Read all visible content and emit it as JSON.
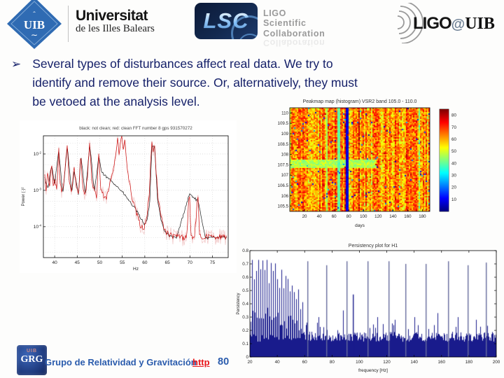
{
  "slide": {
    "bullet_glyph": "➢",
    "bullet_lines": [
      "Several types of disturbances affect real data. We try to",
      "identify and remove their source. Or, alternatively, they must",
      "be vetoed at the analysis level."
    ],
    "text_color": "#152069"
  },
  "header": {
    "uib_logo": {
      "text": "UIB"
    },
    "universitat": {
      "line1": "Universitat",
      "line2": "de les Illes Balears"
    },
    "lsc_logo": {
      "text": "LSC"
    },
    "lsc_caption": {
      "line1": "LIGO",
      "line2": "Scientific",
      "line3": "Collaboration"
    },
    "ligo_uib": {
      "ligo": "LIGO",
      "at": "@",
      "uib": "UIB"
    }
  },
  "footer": {
    "logo_top": "UIB",
    "logo_text": "GRG",
    "group_name": "Grupo de Relatividad y Gravitación",
    "link_label": "http",
    "page_number": "80"
  },
  "chart_data": [
    {
      "type": "line",
      "title": "black: not clean; red: clean FFT number 8 gps 931570272",
      "xlabel": "Hz",
      "ylabel": "Power (·)²",
      "x_ticks": [
        40,
        45,
        50,
        55,
        60,
        65,
        70,
        75
      ],
      "x_range": [
        37.5,
        78.5
      ],
      "y_scale": "log",
      "y_tick_exps": [
        -2,
        -3,
        -4
      ],
      "y_range_exp": [
        -4.85,
        -1.5
      ],
      "grid": true,
      "series": [
        {
          "name": "black: not clean",
          "color": "#1c1c1c",
          "noise": 0.035,
          "points": [
            [
              37.8,
              0.0022
            ],
            [
              38.5,
              0.0011
            ],
            [
              39.3,
              0.005
            ],
            [
              40.0,
              0.0014
            ],
            [
              40.9,
              0.013
            ],
            [
              41.8,
              0.00075
            ],
            [
              42.8,
              0.017
            ],
            [
              43.8,
              0.0008
            ],
            [
              44.3,
              0.0035
            ],
            [
              45.3,
              0.0007
            ],
            [
              45.8,
              0.01
            ],
            [
              46.8,
              0.00075
            ],
            [
              47.8,
              0.019
            ],
            [
              48.8,
              0.00085
            ],
            [
              49.8,
              0.009
            ],
            [
              50.4,
              0.0032
            ],
            [
              51.0,
              0.0026
            ],
            [
              51.7,
              0.0022
            ],
            [
              52.4,
              0.0019
            ],
            [
              53.1,
              0.0016
            ],
            [
              53.8,
              0.0013
            ],
            [
              54.5,
              0.00105
            ],
            [
              55.2,
              0.00085
            ],
            [
              55.9,
              0.00065
            ],
            [
              56.6,
              0.0005
            ],
            [
              57.3,
              0.00038
            ],
            [
              58.0,
              0.00029
            ],
            [
              58.7,
              0.00021
            ],
            [
              59.4,
              0.00015
            ],
            [
              60.0,
              0.000115
            ],
            [
              60.6,
              0.00016
            ],
            [
              61.1,
              0.0005
            ],
            [
              61.6,
              0.019
            ],
            [
              62.2,
              0.015
            ],
            [
              62.8,
              0.0006
            ],
            [
              63.6,
              0.00015
            ],
            [
              64.4,
              7.5e-05
            ],
            [
              65.5,
              5.5e-05
            ],
            [
              67.0,
              4.8e-05
            ],
            [
              69.9,
              0.0008
            ],
            [
              71.8,
              0.0005
            ],
            [
              73.5,
              4.8e-05
            ],
            [
              76.0,
              5.2e-05
            ],
            [
              78.2,
              5e-05
            ]
          ]
        },
        {
          "name": "red: clean",
          "color": "#cc1212",
          "noise": 0.08,
          "points": [
            [
              37.8,
              0.0025
            ],
            [
              38.1,
              0.001
            ],
            [
              38.5,
              0.0035
            ],
            [
              38.9,
              0.0012
            ],
            [
              39.3,
              0.007
            ],
            [
              39.6,
              0.0011
            ],
            [
              40.0,
              0.0018
            ],
            [
              40.5,
              0.0009
            ],
            [
              40.9,
              0.016
            ],
            [
              41.2,
              0.0014
            ],
            [
              41.8,
              0.00085
            ],
            [
              42.3,
              0.004
            ],
            [
              42.8,
              0.021
            ],
            [
              43.2,
              0.0018
            ],
            [
              43.8,
              0.0009
            ],
            [
              44.3,
              0.005
            ],
            [
              44.8,
              0.0011
            ],
            [
              45.3,
              0.00075
            ],
            [
              45.8,
              0.013
            ],
            [
              46.2,
              0.0013
            ],
            [
              46.8,
              0.0008
            ],
            [
              47.3,
              0.0026
            ],
            [
              47.8,
              0.023
            ],
            [
              48.2,
              0.0017
            ],
            [
              48.8,
              0.0009
            ],
            [
              49.3,
              0.00065
            ],
            [
              49.8,
              0.012
            ],
            [
              50.2,
              0.0011
            ],
            [
              50.8,
              0.0007
            ],
            [
              51.3,
              0.00055
            ],
            [
              51.9,
              0.0009
            ],
            [
              52.4,
              0.0018
            ],
            [
              52.9,
              0.0035
            ],
            [
              53.3,
              0.007
            ],
            [
              53.7,
              0.014
            ],
            [
              54.0,
              0.029
            ],
            [
              54.3,
              0.009
            ],
            [
              54.6,
              0.024
            ],
            [
              54.9,
              0.031
            ],
            [
              55.2,
              0.011
            ],
            [
              55.5,
              0.027
            ],
            [
              55.9,
              0.007
            ],
            [
              56.3,
              0.0026
            ],
            [
              56.7,
              0.0013
            ],
            [
              57.1,
              0.0007
            ],
            [
              57.6,
              0.00038
            ],
            [
              58.1,
              0.00024
            ],
            [
              58.6,
              0.00015
            ],
            [
              59.1,
              0.000105
            ],
            [
              59.6,
              9e-05
            ],
            [
              60.1,
              0.00011
            ],
            [
              60.6,
              0.00022
            ],
            [
              61.0,
              0.0009
            ],
            [
              61.3,
              0.006
            ],
            [
              61.6,
              0.024
            ],
            [
              61.9,
              0.012
            ],
            [
              62.2,
              0.02
            ],
            [
              62.5,
              0.0035
            ],
            [
              62.9,
              0.0007
            ],
            [
              63.4,
              0.00026
            ],
            [
              63.9,
              0.00013
            ],
            [
              64.4,
              8.5e-05
            ],
            [
              65.0,
              6.5e-05
            ],
            [
              65.8,
              5.8e-05
            ],
            [
              66.6,
              5.2e-05
            ],
            [
              67.5,
              5.6e-05
            ],
            [
              68.4,
              5e-05
            ],
            [
              69.3,
              5.4e-05
            ],
            [
              69.9,
              0.0011
            ],
            [
              70.2,
              5.6e-05
            ],
            [
              71.0,
              5e-05
            ],
            [
              71.8,
              0.00075
            ],
            [
              72.1,
              5.5e-05
            ],
            [
              73.0,
              5e-05
            ],
            [
              74.0,
              5.6e-05
            ],
            [
              75.0,
              5e-05
            ],
            [
              76.0,
              5.5e-05
            ],
            [
              77.0,
              5e-05
            ],
            [
              78.2,
              5.4e-05
            ]
          ]
        }
      ]
    },
    {
      "type": "heatmap",
      "title": "Peakmap map (histogram) VSR2  band 105.0 - 110.0",
      "xlabel": "days",
      "x_ticks": [
        20,
        40,
        60,
        80,
        100,
        120,
        140,
        160,
        180
      ],
      "x_range": [
        0,
        190
      ],
      "y_ticks": [
        110,
        109.5,
        109,
        108.5,
        108,
        107.5,
        107,
        106.5,
        106,
        105.5
      ],
      "y_range": [
        105.25,
        110.25
      ],
      "colormap": "jet",
      "colorbar_ticks": [
        80,
        70,
        60,
        50,
        40,
        30,
        20,
        10
      ],
      "colorbar_range": [
        0,
        85
      ],
      "base_value": 62,
      "features": {
        "vbands": [
          {
            "day": 51,
            "width": 2,
            "value": 45
          },
          {
            "day": 67,
            "width": 4,
            "value": 40
          },
          {
            "day": 78,
            "width": 5,
            "value": 8
          },
          {
            "day": 97,
            "width": 1.6,
            "value": 11
          },
          {
            "day": 135,
            "width": 1.3,
            "value": 22
          },
          {
            "day": 150,
            "width": 1.1,
            "value": 80
          },
          {
            "day": 156,
            "width": 1.3,
            "value": 14
          }
        ],
        "hbands": [
          {
            "freq": 107.55,
            "half_height": 0.22,
            "day_end": 118,
            "value": 47
          }
        ]
      }
    },
    {
      "type": "bar",
      "title": "Persistency plot for H1",
      "xlabel": "frequency [Hz]",
      "ylabel": "Persistency",
      "x_ticks": [
        20,
        40,
        60,
        80,
        100,
        120,
        140,
        160,
        180,
        200
      ],
      "x_range": [
        20,
        200
      ],
      "y_ticks": [
        0,
        0.1,
        0.2,
        0.3,
        0.4,
        0.5,
        0.6,
        0.7,
        0.8
      ],
      "y_range": [
        0,
        0.8
      ],
      "bar_color": "#191b8c",
      "spike_color": "#666b9e",
      "baseline_level": 0.15,
      "comb": {
        "range": [
          20.5,
          58.5
        ],
        "envelope_start": 0.62,
        "envelope_peak": 0.73,
        "envelope_end": 0.4
      },
      "tall_spikes": [
        [
          61.7,
          0.72
        ],
        [
          75.8,
          0.69
        ],
        [
          90.4,
          0.72
        ],
        [
          95.4,
          0.47
        ],
        [
          106,
          0.72
        ],
        [
          121,
          0.72
        ],
        [
          133.6,
          0.7
        ],
        [
          148.2,
          0.7
        ],
        [
          164.8,
          0.72
        ],
        [
          178.9,
          0.69
        ],
        [
          192.5,
          0.71
        ]
      ],
      "medium_spikes": [
        [
          70,
          0.3
        ],
        [
          88,
          0.35
        ],
        [
          113,
          0.3
        ],
        [
          126,
          0.28
        ],
        [
          140,
          0.3
        ],
        [
          157,
          0.33
        ],
        [
          172,
          0.3
        ],
        [
          185,
          0.28
        ]
      ]
    }
  ]
}
